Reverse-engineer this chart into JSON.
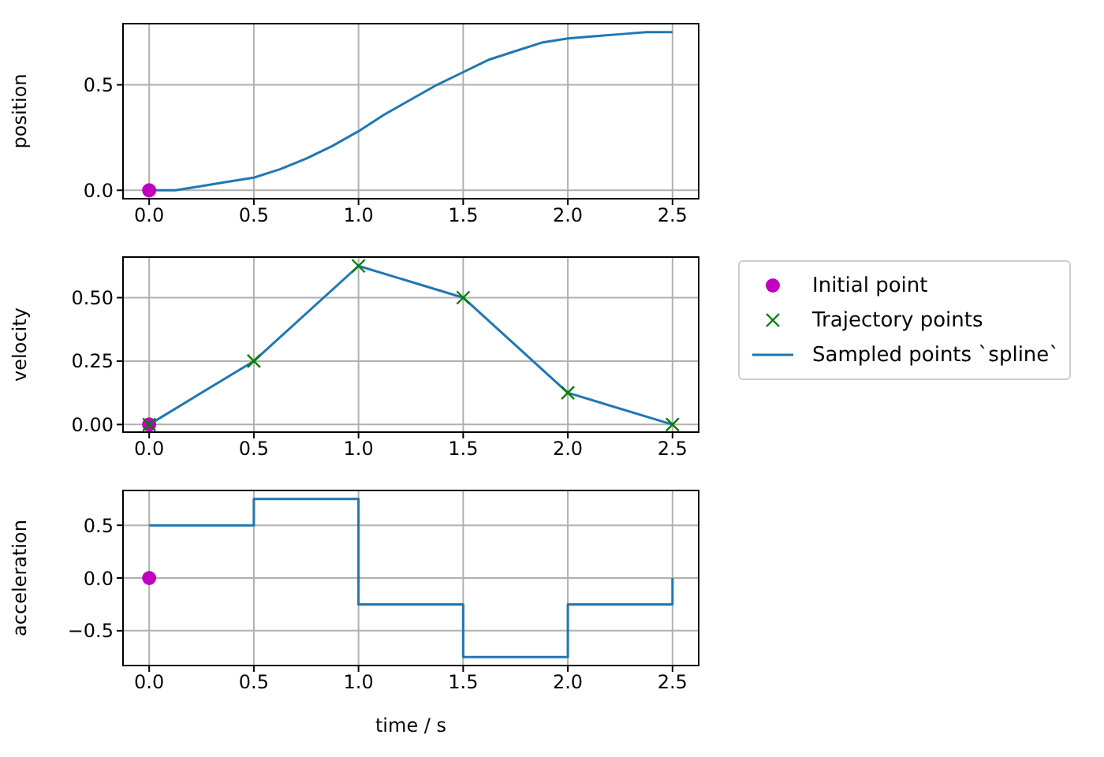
{
  "chart_data": [
    {
      "type": "line",
      "ylabel": "position",
      "xlim": [
        -0.125,
        2.625
      ],
      "ylim": [
        -0.04,
        0.79
      ],
      "grid": true,
      "legend": false,
      "xticks": [
        {
          "value": 0,
          "label": "0.0"
        },
        {
          "value": 0.5,
          "label": "0.5"
        },
        {
          "value": 1,
          "label": "1.0"
        },
        {
          "value": 1.5,
          "label": "1.5"
        },
        {
          "value": 2,
          "label": "2.0"
        },
        {
          "value": 2.5,
          "label": "2.5"
        }
      ],
      "yticks": [
        {
          "value": 0,
          "label": "0.0"
        },
        {
          "value": 0.5,
          "label": "0.5"
        }
      ],
      "series": [
        {
          "marker": "none",
          "color": "#1f77b4",
          "x": [
            0,
            0.125,
            0.25,
            0.375,
            0.5,
            0.625,
            0.75,
            0.875,
            1,
            1.125,
            1.25,
            1.375,
            1.5,
            1.625,
            1.75,
            1.875,
            2,
            2.125,
            2.25,
            2.375,
            2.5
          ],
          "values": [
            0,
            0.0,
            0.02,
            0.04,
            0.06,
            0.1,
            0.15,
            0.21,
            0.28,
            0.36,
            0.43,
            0.5,
            0.56,
            0.62,
            0.66,
            0.7,
            0.72,
            0.73,
            0.74,
            0.75,
            0.75
          ]
        },
        {
          "type": "scatter",
          "marker": "circle",
          "color": "#bf00bf",
          "x": [
            0
          ],
          "values": [
            0
          ]
        }
      ]
    },
    {
      "type": "line",
      "ylabel": "velocity",
      "xlim": [
        -0.125,
        2.625
      ],
      "ylim": [
        -0.03,
        0.66
      ],
      "grid": true,
      "legend": "right",
      "xticks": [
        {
          "value": 0,
          "label": "0.0"
        },
        {
          "value": 0.5,
          "label": "0.5"
        },
        {
          "value": 1,
          "label": "1.0"
        },
        {
          "value": 1.5,
          "label": "1.5"
        },
        {
          "value": 2,
          "label": "2.0"
        },
        {
          "value": 2.5,
          "label": "2.5"
        }
      ],
      "yticks": [
        {
          "value": 0,
          "label": "0.00"
        },
        {
          "value": 0.25,
          "label": "0.25"
        },
        {
          "value": 0.5,
          "label": "0.50"
        }
      ],
      "series": [
        {
          "name": "Initial point",
          "type": "scatter",
          "marker": "circle",
          "color": "#bf00bf",
          "x": [
            0
          ],
          "values": [
            0
          ]
        },
        {
          "name": "Trajectory points",
          "type": "scatter",
          "marker": "cross",
          "color": "#008000",
          "x": [
            0,
            0.5,
            1,
            1.5,
            2,
            2.5
          ],
          "values": [
            0,
            0.25,
            0.625,
            0.5,
            0.125,
            0
          ]
        },
        {
          "name": "Sampled points `spline`",
          "marker": "none",
          "color": "#1f77b4",
          "x": [
            0,
            0.5,
            1,
            1.5,
            2,
            2.5
          ],
          "values": [
            0,
            0.25,
            0.625,
            0.5,
            0.125,
            0
          ]
        }
      ]
    },
    {
      "type": "step",
      "ylabel": "acceleration",
      "xlabel": "time / s",
      "xlim": [
        -0.125,
        2.625
      ],
      "ylim": [
        -0.83,
        0.83
      ],
      "grid": true,
      "legend": false,
      "xticks": [
        {
          "value": 0,
          "label": "0.0"
        },
        {
          "value": 0.5,
          "label": "0.5"
        },
        {
          "value": 1,
          "label": "1.0"
        },
        {
          "value": 1.5,
          "label": "1.5"
        },
        {
          "value": 2,
          "label": "2.0"
        },
        {
          "value": 2.5,
          "label": "2.5"
        }
      ],
      "yticks": [
        {
          "value": -0.5,
          "label": "−0.5"
        },
        {
          "value": 0,
          "label": "0.0"
        },
        {
          "value": 0.5,
          "label": "0.5"
        }
      ],
      "series": [
        {
          "marker": "none",
          "color": "#1f77b4",
          "x": [
            0,
            0.5,
            1,
            1.5,
            2,
            2.5
          ],
          "values": [
            0.5,
            0.75,
            -0.25,
            -0.75,
            -0.25,
            0
          ]
        },
        {
          "type": "scatter",
          "marker": "circle",
          "color": "#bf00bf",
          "x": [
            0
          ],
          "values": [
            0
          ]
        }
      ]
    }
  ]
}
